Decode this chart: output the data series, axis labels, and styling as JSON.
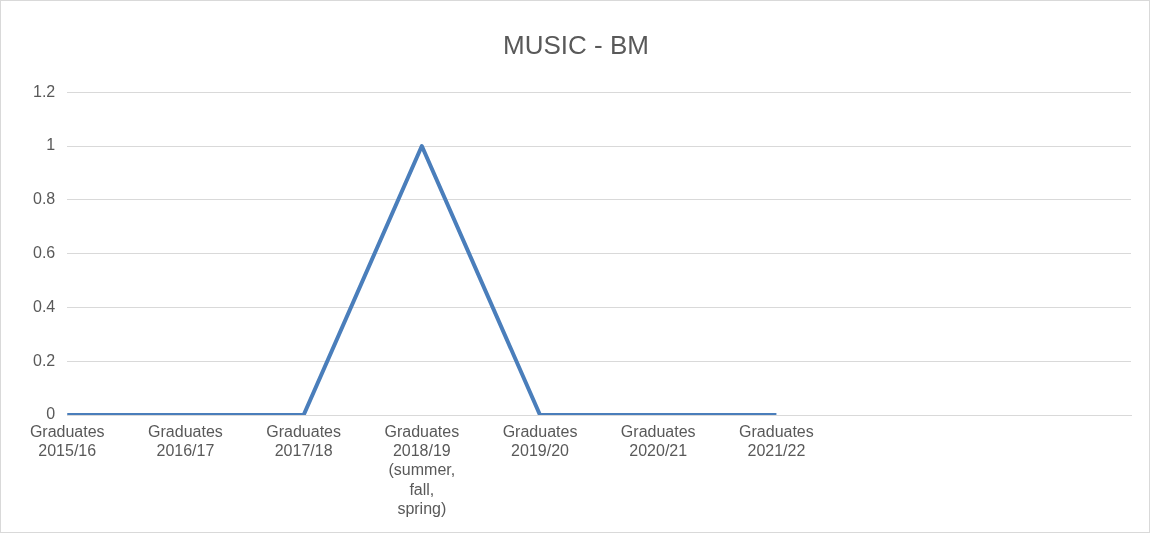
{
  "chart_data": {
    "type": "line",
    "title": "MUSIC - BM",
    "categories": [
      "Graduates 2015/16",
      "Graduates 2016/17",
      "Graduates 2017/18",
      "Graduates 2018/19 (summer, fall, spring)",
      "Graduates 2019/20",
      "Graduates 2020/21",
      "Graduates 2021/22",
      null,
      null,
      null
    ],
    "series": [
      {
        "color": "#4a7ebb",
        "values": [
          0,
          0,
          0,
          1,
          0,
          0,
          0,
          null,
          null,
          null
        ]
      }
    ],
    "ylim": [
      0,
      1.2
    ],
    "yticks": [
      0,
      0.2,
      0.4,
      0.6,
      0.8,
      1,
      1.2
    ],
    "grid": "y",
    "legend": false,
    "marker": "none",
    "line_style": "solid"
  }
}
